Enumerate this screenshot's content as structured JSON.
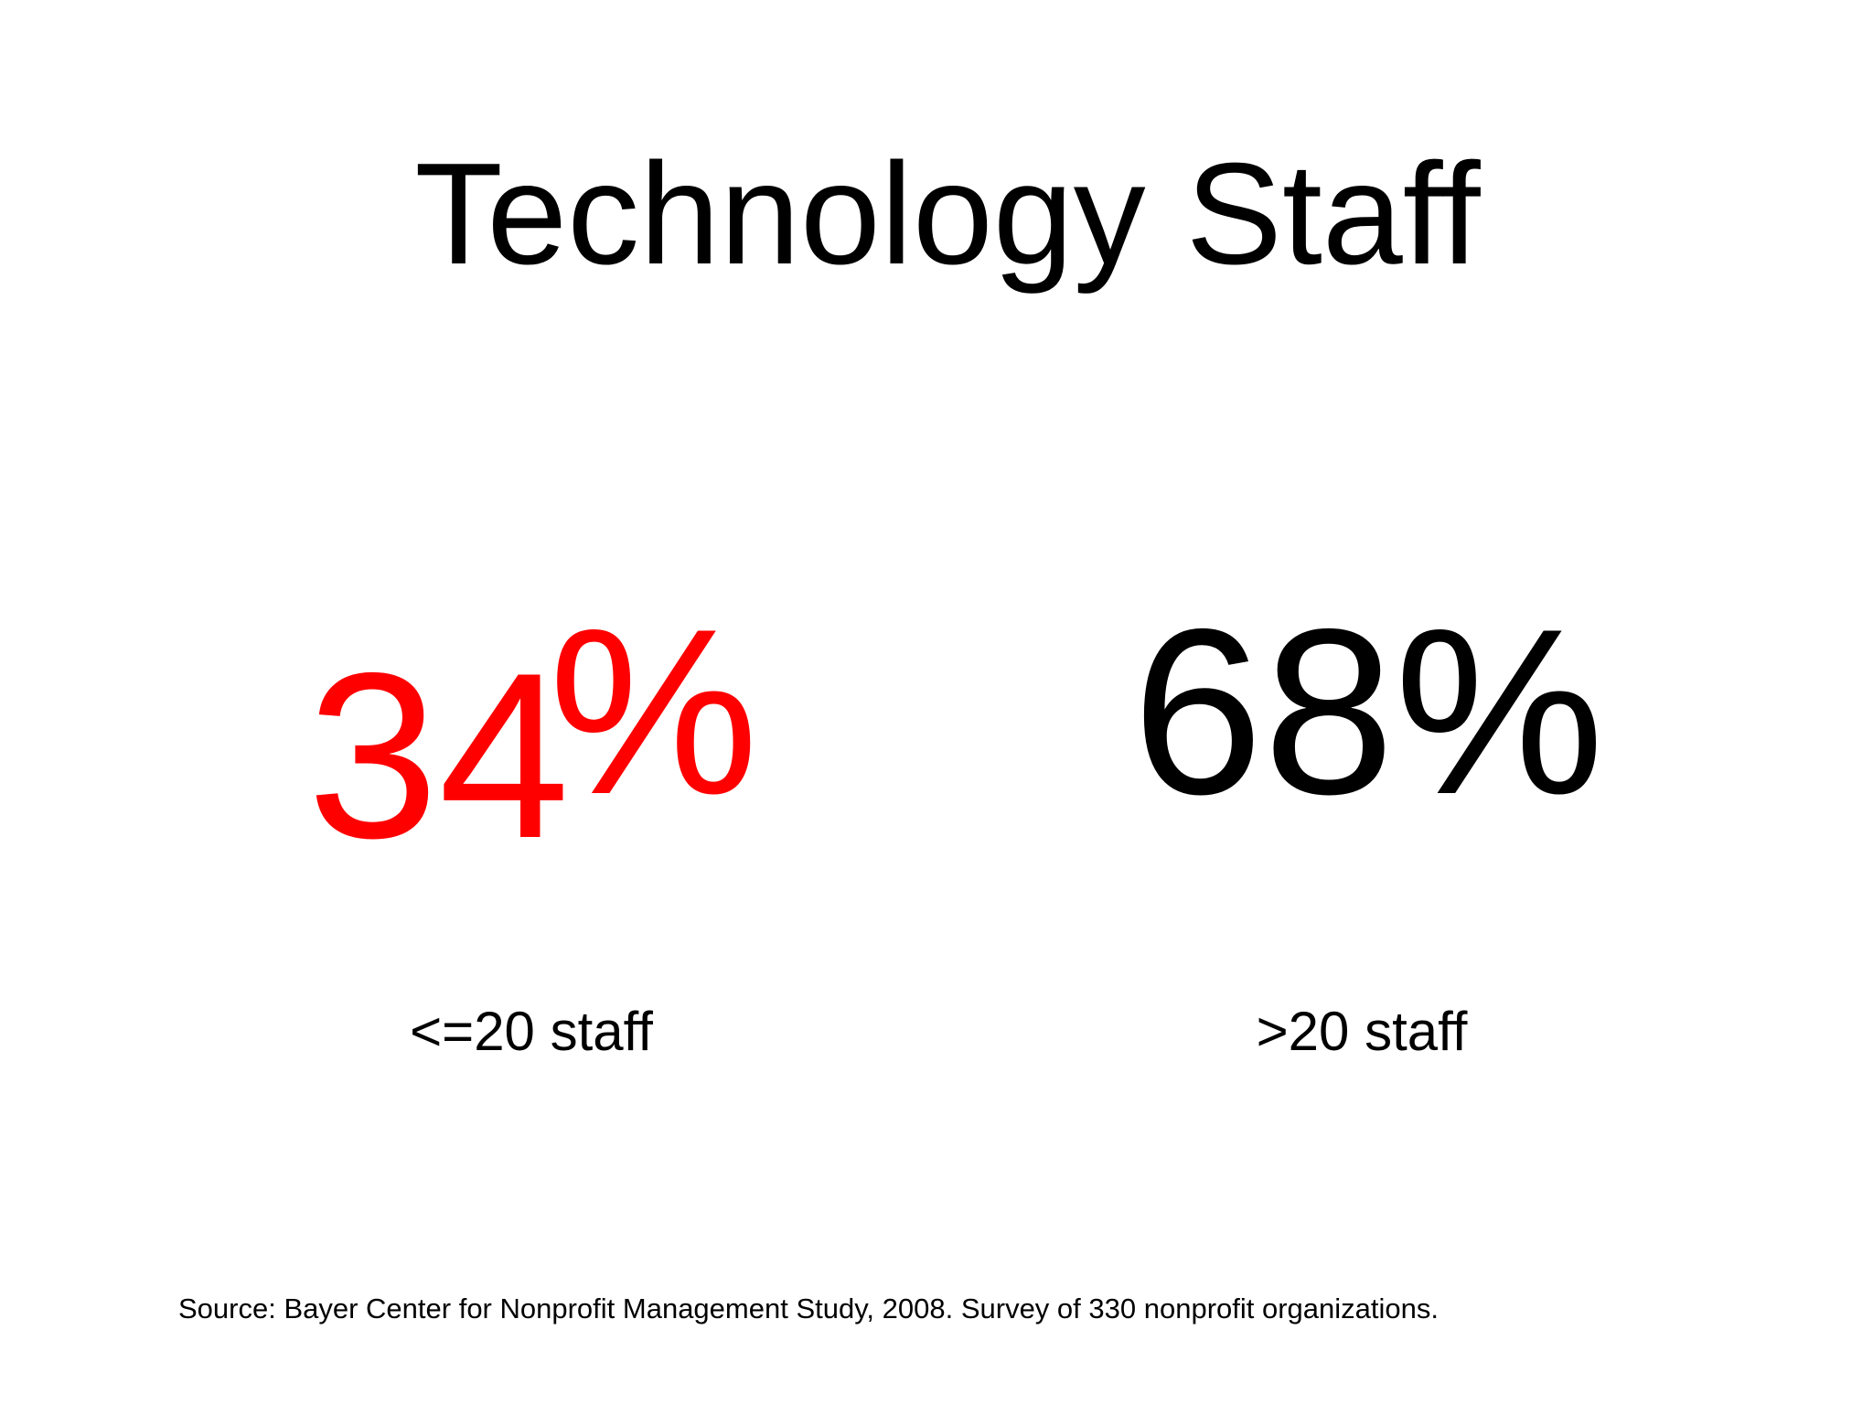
{
  "slide": {
    "title": "Technology Staff",
    "stats": [
      {
        "number": "34",
        "suffix": "%",
        "label": "<=20 staff"
      },
      {
        "number": "68%",
        "label": ">20 staff"
      }
    ],
    "source": "Source: Bayer Center for Nonprofit Management Study, 2008. Survey of 330 nonprofit organizations."
  }
}
